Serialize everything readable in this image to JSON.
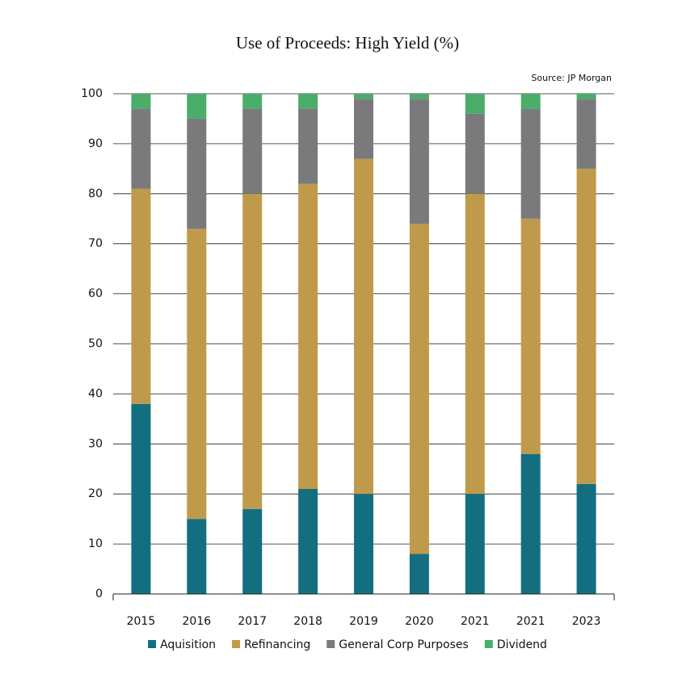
{
  "chart_data": {
    "type": "stacked_bar",
    "title": "Use of Proceeds: High Yield (%)",
    "source": "Source: JP Morgan",
    "categories": [
      "2015",
      "2016",
      "2017",
      "2018",
      "2019",
      "2020",
      "2021",
      "2021",
      "2023"
    ],
    "series": [
      {
        "name": "Aquisition",
        "color": "#136f80",
        "values": [
          38,
          15,
          17,
          21,
          20,
          8,
          20,
          28,
          22
        ]
      },
      {
        "name": "Refinancing",
        "color": "#bf9a4a",
        "values": [
          43,
          58,
          63,
          61,
          67,
          66,
          60,
          47,
          63
        ]
      },
      {
        "name": "General Corp Purposes",
        "color": "#7a7a7d",
        "values": [
          16,
          22,
          17,
          15,
          12,
          25,
          16,
          22,
          14
        ]
      },
      {
        "name": "Dividend",
        "color": "#4aad6a",
        "values": [
          3,
          5,
          3,
          3,
          1,
          1,
          4,
          3,
          1
        ]
      }
    ],
    "ylim": [
      0,
      100
    ],
    "yticks": [
      0,
      10,
      20,
      30,
      40,
      50,
      60,
      70,
      80,
      90,
      100
    ],
    "grid": true
  }
}
